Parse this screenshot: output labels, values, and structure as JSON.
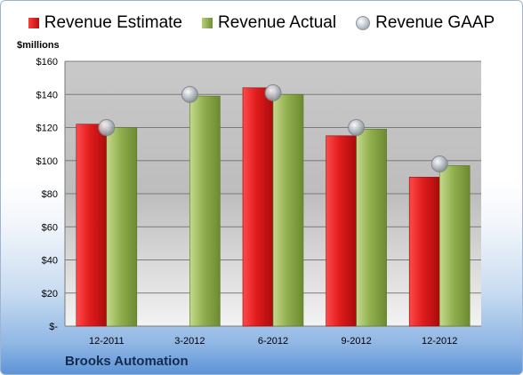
{
  "unit_label": "$millions",
  "company_name": "Brooks Automation",
  "colors": {
    "estimate": "#d31515",
    "actual": "#8fae4b",
    "gaap": "#b3b7be"
  },
  "legend": {
    "estimate_label": "Revenue Estimate",
    "actual_label": "Revenue Actual",
    "gaap_label": "Revenue GAAP"
  },
  "chart_data": {
    "type": "bar",
    "title": "",
    "xlabel": "",
    "ylabel": "$millions",
    "ylim": [
      0,
      160
    ],
    "yticks": [
      0,
      20,
      40,
      60,
      80,
      100,
      120,
      140,
      160
    ],
    "ytick_labels": [
      "$-",
      "$20",
      "$40",
      "$60",
      "$80",
      "$100",
      "$120",
      "$140",
      "$160"
    ],
    "categories": [
      "12-2011",
      "3-2012",
      "6-2012",
      "9-2012",
      "12-2012"
    ],
    "grid": true,
    "legend_position": "top",
    "series": [
      {
        "name": "Revenue Estimate",
        "kind": "bar",
        "values": [
          122,
          null,
          144,
          115,
          90
        ]
      },
      {
        "name": "Revenue Actual",
        "kind": "bar",
        "values": [
          120,
          139,
          140,
          119,
          97
        ]
      },
      {
        "name": "Revenue GAAP",
        "kind": "marker",
        "values": [
          120,
          140,
          141,
          120,
          98
        ]
      }
    ]
  }
}
